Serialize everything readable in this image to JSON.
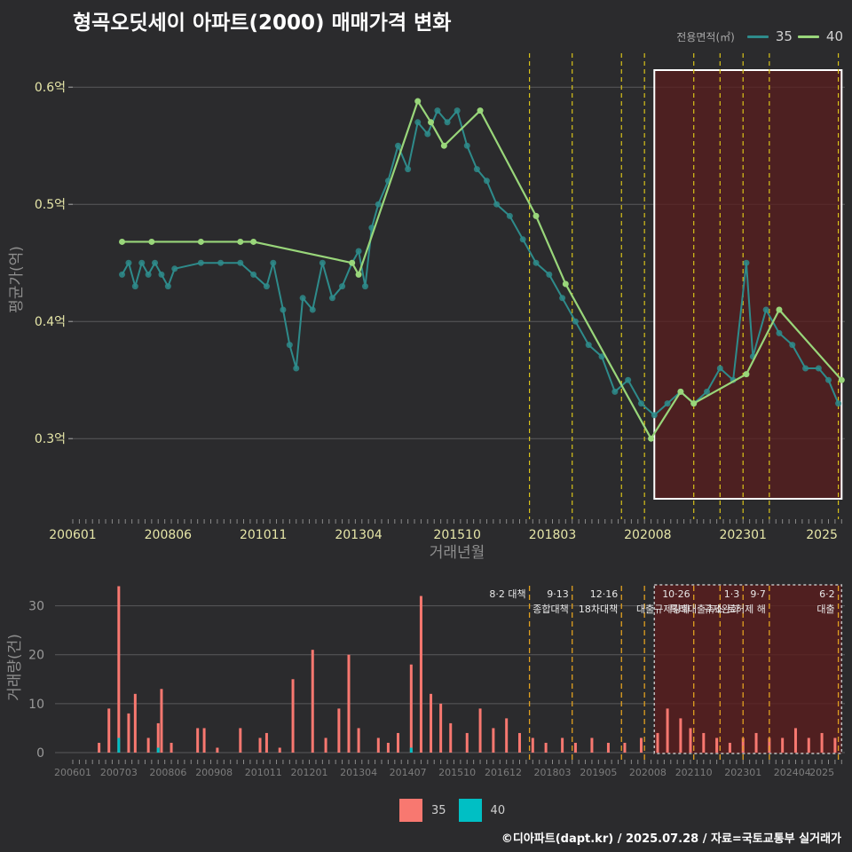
{
  "header": {
    "title": "형곡오딧세이 아파트(2000) 매매가격 변화"
  },
  "legend_top": {
    "title": "전용면적(㎡)",
    "items": [
      {
        "label": "35",
        "color": "#2e8b8b"
      },
      {
        "label": "40",
        "color": "#99d67a"
      }
    ]
  },
  "legend_bottom": {
    "items": [
      {
        "label": "35",
        "color": "#f87870"
      },
      {
        "label": "40",
        "color": "#00bfc4"
      }
    ]
  },
  "footer": {
    "text": "©디아파트(dapt.kr) / 2025.07.28 / 자료=국토교통부 실거래가"
  },
  "chart_data": [
    {
      "type": "line",
      "xlabel": "거래년월",
      "ylabel": "평균가(억)",
      "x_ticks": [
        "200601",
        "200806",
        "201011",
        "201304",
        "201510",
        "201803",
        "202008",
        "202301",
        "2025"
      ],
      "y_ticks": [
        "0.3억",
        "0.4억",
        "0.5억",
        "0.6억"
      ],
      "ylim": [
        0.235,
        0.635
      ],
      "xlim": [
        "2006-01",
        "2025-08"
      ],
      "series": [
        {
          "name": "35",
          "color": "#2e8b8b",
          "points": [
            [
              "2007-04",
              0.44
            ],
            [
              "2007-06",
              0.45
            ],
            [
              "2007-08",
              0.43
            ],
            [
              "2007-10",
              0.45
            ],
            [
              "2007-12",
              0.44
            ],
            [
              "2008-02",
              0.45
            ],
            [
              "2008-04",
              0.44
            ],
            [
              "2008-06",
              0.43
            ],
            [
              "2008-08",
              0.445
            ],
            [
              "2009-04",
              0.45
            ],
            [
              "2009-10",
              0.45
            ],
            [
              "2010-04",
              0.45
            ],
            [
              "2010-08",
              0.44
            ],
            [
              "2010-12",
              0.43
            ],
            [
              "2011-02",
              0.45
            ],
            [
              "2011-05",
              0.41
            ],
            [
              "2011-07",
              0.38
            ],
            [
              "2011-09",
              0.36
            ],
            [
              "2011-11",
              0.42
            ],
            [
              "2012-02",
              0.41
            ],
            [
              "2012-05",
              0.45
            ],
            [
              "2012-08",
              0.42
            ],
            [
              "2012-11",
              0.43
            ],
            [
              "2013-02",
              0.45
            ],
            [
              "2013-04",
              0.46
            ],
            [
              "2013-06",
              0.43
            ],
            [
              "2013-08",
              0.48
            ],
            [
              "2013-10",
              0.5
            ],
            [
              "2014-01",
              0.52
            ],
            [
              "2014-04",
              0.55
            ],
            [
              "2014-07",
              0.53
            ],
            [
              "2014-10",
              0.57
            ],
            [
              "2015-01",
              0.56
            ],
            [
              "2015-04",
              0.58
            ],
            [
              "2015-07",
              0.57
            ],
            [
              "2015-10",
              0.58
            ],
            [
              "2016-01",
              0.55
            ],
            [
              "2016-04",
              0.53
            ],
            [
              "2016-07",
              0.52
            ],
            [
              "2016-10",
              0.5
            ],
            [
              "2017-02",
              0.49
            ],
            [
              "2017-06",
              0.47
            ],
            [
              "2017-10",
              0.45
            ],
            [
              "2018-02",
              0.44
            ],
            [
              "2018-06",
              0.42
            ],
            [
              "2018-10",
              0.4
            ],
            [
              "2019-02",
              0.38
            ],
            [
              "2019-06",
              0.37
            ],
            [
              "2019-10",
              0.34
            ],
            [
              "2020-02",
              0.35
            ],
            [
              "2020-06",
              0.33
            ],
            [
              "2020-10",
              0.32
            ],
            [
              "2021-02",
              0.33
            ],
            [
              "2021-06",
              0.34
            ],
            [
              "2021-10",
              0.33
            ],
            [
              "2022-02",
              0.34
            ],
            [
              "2022-06",
              0.36
            ],
            [
              "2022-10",
              0.35
            ],
            [
              "2023-02",
              0.45
            ],
            [
              "2023-04",
              0.37
            ],
            [
              "2023-08",
              0.41
            ],
            [
              "2023-12",
              0.39
            ],
            [
              "2024-04",
              0.38
            ],
            [
              "2024-08",
              0.36
            ],
            [
              "2024-12",
              0.36
            ],
            [
              "2025-03",
              0.35
            ],
            [
              "2025-06",
              0.33
            ]
          ]
        },
        {
          "name": "40",
          "color": "#99d67a",
          "points": [
            [
              "2007-04",
              0.468
            ],
            [
              "2008-01",
              0.468
            ],
            [
              "2009-04",
              0.468
            ],
            [
              "2010-04",
              0.468
            ],
            [
              "2010-08",
              0.468
            ],
            [
              "2013-02",
              0.45
            ],
            [
              "2013-04",
              0.44
            ],
            [
              "2014-10",
              0.588
            ],
            [
              "2015-02",
              0.57
            ],
            [
              "2015-06",
              0.55
            ],
            [
              "2016-05",
              0.58
            ],
            [
              "2017-10",
              0.49
            ],
            [
              "2018-07",
              0.432
            ],
            [
              "2020-09",
              0.3
            ],
            [
              "2021-06",
              0.34
            ],
            [
              "2021-10",
              0.33
            ],
            [
              "2023-02",
              0.355
            ],
            [
              "2023-12",
              0.41
            ],
            [
              "2025-07",
              0.35
            ]
          ]
        }
      ],
      "highlight_period": [
        "2020-10",
        "2025-07"
      ]
    },
    {
      "type": "bar",
      "ylabel": "거래량(건)",
      "y_ticks": [
        "0",
        "10",
        "20",
        "30"
      ],
      "ylim": [
        0,
        35
      ],
      "x_ticks": [
        "200601",
        "200703",
        "200806",
        "200908",
        "201011",
        "201201",
        "201304",
        "201407",
        "201510",
        "201612",
        "201803",
        "201905",
        "202008",
        "202110",
        "202301",
        "202404",
        "2025"
      ],
      "series": [
        {
          "name": "35",
          "color": "#f87870"
        },
        {
          "name": "40",
          "color": "#00bfc4"
        }
      ],
      "bars": [
        [
          "2006-09",
          2,
          0
        ],
        [
          "2006-12",
          9,
          0
        ],
        [
          "2007-03",
          34,
          3
        ],
        [
          "2007-06",
          8,
          0
        ],
        [
          "2007-08",
          12,
          0
        ],
        [
          "2007-12",
          3,
          0
        ],
        [
          "2008-03",
          6,
          1
        ],
        [
          "2008-04",
          13,
          0
        ],
        [
          "2008-07",
          2,
          0
        ],
        [
          "2009-03",
          5,
          0
        ],
        [
          "2009-05",
          5,
          0
        ],
        [
          "2009-09",
          1,
          0
        ],
        [
          "2010-04",
          5,
          0
        ],
        [
          "2010-10",
          3,
          0
        ],
        [
          "2010-12",
          4,
          0
        ],
        [
          "2011-04",
          1,
          0
        ],
        [
          "2011-08",
          15,
          0
        ],
        [
          "2012-02",
          21,
          0
        ],
        [
          "2012-06",
          3,
          0
        ],
        [
          "2012-10",
          9,
          0
        ],
        [
          "2013-01",
          20,
          0
        ],
        [
          "2013-04",
          5,
          0
        ],
        [
          "2013-10",
          3,
          0
        ],
        [
          "2014-01",
          2,
          0
        ],
        [
          "2014-04",
          4,
          0
        ],
        [
          "2014-08",
          18,
          1
        ],
        [
          "2014-11",
          32,
          0
        ],
        [
          "2015-02",
          12,
          0
        ],
        [
          "2015-05",
          10,
          0
        ],
        [
          "2015-08",
          6,
          0
        ],
        [
          "2016-01",
          4,
          0
        ],
        [
          "2016-05",
          9,
          0
        ],
        [
          "2016-09",
          5,
          0
        ],
        [
          "2017-01",
          7,
          0
        ],
        [
          "2017-05",
          4,
          0
        ],
        [
          "2017-09",
          3,
          0
        ],
        [
          "2018-01",
          2,
          0
        ],
        [
          "2018-06",
          3,
          0
        ],
        [
          "2018-10",
          2,
          0
        ],
        [
          "2019-03",
          3,
          0
        ],
        [
          "2019-08",
          2,
          0
        ],
        [
          "2020-01",
          2,
          0
        ],
        [
          "2020-06",
          3,
          0
        ],
        [
          "2020-11",
          4,
          0
        ],
        [
          "2021-02",
          9,
          0
        ],
        [
          "2021-06",
          7,
          0
        ],
        [
          "2021-09",
          5,
          0
        ],
        [
          "2022-01",
          4,
          0
        ],
        [
          "2022-05",
          3,
          0
        ],
        [
          "2022-09",
          2,
          0
        ],
        [
          "2023-01",
          3,
          0
        ],
        [
          "2023-05",
          4,
          0
        ],
        [
          "2023-09",
          3,
          0
        ],
        [
          "2024-01",
          3,
          0
        ],
        [
          "2024-05",
          5,
          0
        ],
        [
          "2024-09",
          3,
          0
        ],
        [
          "2025-01",
          4,
          0
        ],
        [
          "2025-05",
          3,
          0
        ]
      ],
      "highlight_period": [
        "2020-10",
        "2025-07"
      ],
      "policy_lines": [
        {
          "date": "2017-08",
          "labels": [
            "8·2 대책"
          ]
        },
        {
          "date": "2018-09",
          "labels": [
            "9·13",
            "종합대책"
          ]
        },
        {
          "date": "2019-12",
          "labels": [
            "12·16",
            "18차대책"
          ]
        },
        {
          "date": "2020-07",
          "labels": []
        },
        {
          "date": "2021-10",
          "labels": [
            "10·26",
            "대출규제강화"
          ]
        },
        {
          "date": "2022-06",
          "labels": []
        },
        {
          "date": "2023-01",
          "labels": [
            "1·3",
            "규제완화"
          ]
        },
        {
          "date": "2023-09",
          "labels": [
            "9·7",
            "특례대출축소 토허제 해"
          ]
        },
        {
          "date": "2025-06",
          "labels": [
            "6·2",
            "대출"
          ]
        }
      ]
    }
  ]
}
